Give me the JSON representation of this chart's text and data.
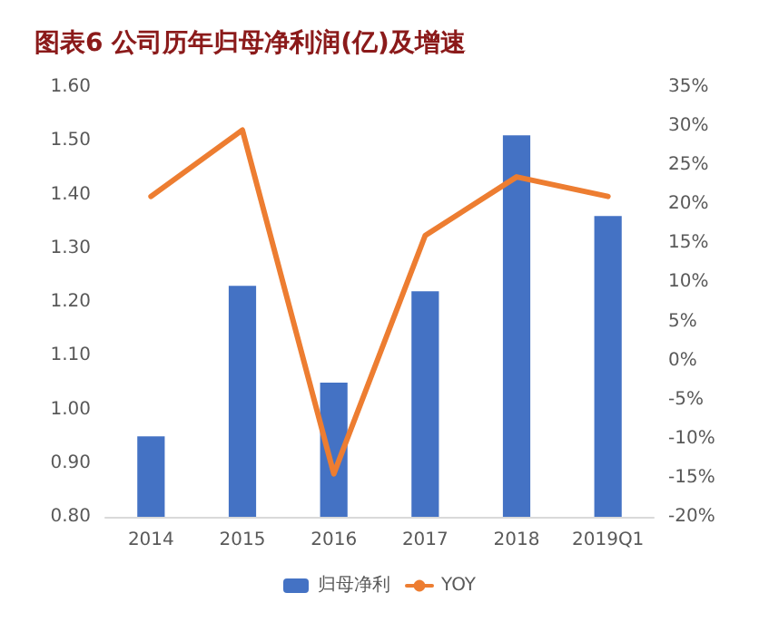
{
  "chart_data": {
    "type": "bar",
    "title": "图表6 公司历年归母净利润(亿)及增速",
    "categories": [
      "2014",
      "2015",
      "2016",
      "2017",
      "2018",
      "2019Q1"
    ],
    "series": [
      {
        "name": "归母净利",
        "color": "#4472c4",
        "values": [
          0.95,
          1.23,
          1.05,
          1.22,
          1.51,
          1.36
        ]
      },
      {
        "name": "YOY",
        "type": "line",
        "axis": "y2",
        "color": "#ed7d31",
        "values": [
          21,
          29.5,
          -14.5,
          16,
          23.5,
          21
        ]
      }
    ],
    "ylim": [
      0.8,
      1.6
    ],
    "yticks": [
      {
        "value": 0.8,
        "label": "0.80"
      },
      {
        "value": 0.9,
        "label": "0.90"
      },
      {
        "value": 1.0,
        "label": "1.00"
      },
      {
        "value": 1.1,
        "label": "1.10"
      },
      {
        "value": 1.2,
        "label": "1.20"
      },
      {
        "value": 1.3,
        "label": "1.30"
      },
      {
        "value": 1.4,
        "label": "1.40"
      },
      {
        "value": 1.5,
        "label": "1.50"
      },
      {
        "value": 1.6,
        "label": "1.60"
      }
    ],
    "y2lim": [
      -20,
      35
    ],
    "y2ticks": [
      {
        "value": -20,
        "label": "-20%"
      },
      {
        "value": -15,
        "label": "-15%"
      },
      {
        "value": -10,
        "label": "-10%"
      },
      {
        "value": -5,
        "label": "-5%"
      },
      {
        "value": 0,
        "label": "0%"
      },
      {
        "value": 5,
        "label": "5%"
      },
      {
        "value": 10,
        "label": "10%"
      },
      {
        "value": 15,
        "label": "15%"
      },
      {
        "value": 20,
        "label": "20%"
      },
      {
        "value": 25,
        "label": "25%"
      },
      {
        "value": 30,
        "label": "30%"
      },
      {
        "value": 35,
        "label": "35%"
      }
    ],
    "legend": "bottom",
    "marker": "none",
    "line_style": "solid"
  }
}
